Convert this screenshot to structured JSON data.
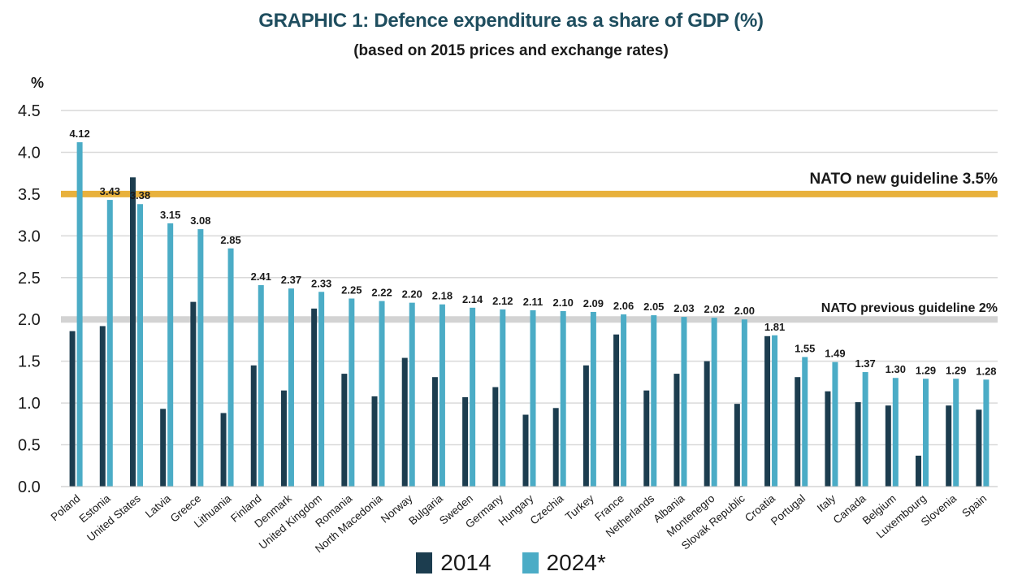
{
  "chart_data": {
    "type": "bar",
    "title": "GRAPHIC 1: Defence expenditure as a share of GDP (%)",
    "subtitle": "(based on 2015 prices and exchange rates)",
    "ylabel": "%",
    "ylim": [
      0,
      4.5
    ],
    "yticks": [
      "0.0",
      "0.5",
      "1.0",
      "1.5",
      "2.0",
      "2.5",
      "3.0",
      "3.5",
      "4.0",
      "4.5"
    ],
    "grid": true,
    "categories": [
      "Poland",
      "Estonia",
      "United States",
      "Latvia",
      "Greece",
      "Lithuania",
      "Finland",
      "Denmark",
      "United Kingdom",
      "Romania",
      "North Macedonia",
      "Norway",
      "Bulgaria",
      "Sweden",
      "Germany",
      "Hungary",
      "Czechia",
      "Turkey",
      "France",
      "Netherlands",
      "Albania",
      "Montenegro",
      "Slovak Republic",
      "Croatia",
      "Portugal",
      "Italy",
      "Canada",
      "Belgium",
      "Luxembourg",
      "Slovenia",
      "Spain"
    ],
    "series": [
      {
        "name": "2014",
        "color": "#1c3d4f",
        "values": [
          1.86,
          1.92,
          3.7,
          0.93,
          2.21,
          0.88,
          1.45,
          1.15,
          2.13,
          1.35,
          1.08,
          1.54,
          1.31,
          1.07,
          1.19,
          0.86,
          0.94,
          1.45,
          1.82,
          1.15,
          1.35,
          1.5,
          0.99,
          1.8,
          1.31,
          1.14,
          1.01,
          0.97,
          0.37,
          0.97,
          0.92
        ]
      },
      {
        "name": "2024*",
        "color": "#4bacc6",
        "values": [
          4.12,
          3.43,
          3.38,
          3.15,
          3.08,
          2.85,
          2.41,
          2.37,
          2.33,
          2.25,
          2.22,
          2.2,
          2.18,
          2.14,
          2.12,
          2.11,
          2.1,
          2.09,
          2.06,
          2.05,
          2.03,
          2.02,
          2.0,
          1.81,
          1.55,
          1.49,
          1.37,
          1.3,
          1.29,
          1.29,
          1.28
        ],
        "data_labels": [
          "4.12",
          "3.43",
          "3.38",
          "3.15",
          "3.08",
          "2.85",
          "2.41",
          "2.37",
          "2.33",
          "2.25",
          "2.22",
          "2.20",
          "2.18",
          "2.14",
          "2.12",
          "2.11",
          "2.10",
          "2.09",
          "2.06",
          "2.05",
          "2.03",
          "2.02",
          "2.00",
          "1.81",
          "1.55",
          "1.49",
          "1.37",
          "1.30",
          "1.29",
          "1.29",
          "1.28"
        ]
      }
    ],
    "reference_lines": [
      {
        "value": 3.5,
        "label": "NATO new guideline 3.5%",
        "color": "#e8b13c"
      },
      {
        "value": 2.0,
        "label": "NATO previous guideline 2%",
        "color": "#d3d3d3"
      }
    ],
    "legend_placement": "bottom-center"
  }
}
